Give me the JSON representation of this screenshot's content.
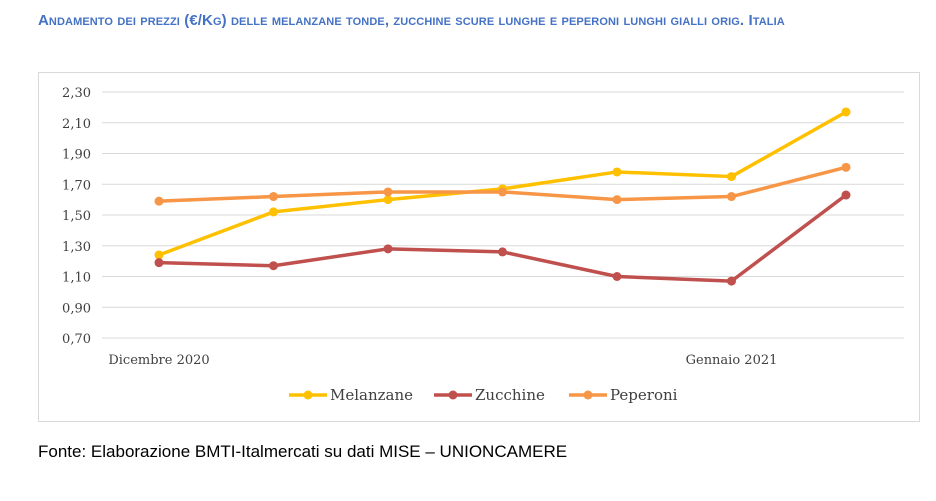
{
  "title": "Andamento dei prezzi (€/Kg) delle melanzane tonde, zucchine scure lunghe e peperoni lunghi gialli orig. Italia",
  "source": "Fonte: Elaborazione BMTI-Italmercati su dati MISE – UNIONCAMERE",
  "chart_data": {
    "type": "line",
    "title": "Andamento dei prezzi (€/Kg) delle melanzane tonde, zucchine scure lunghe e peperoni lunghi gialli orig. Italia",
    "xlabel": "",
    "ylabel": "",
    "x_tick_labels": [
      "Dicembre 2020",
      "",
      "",
      "",
      "",
      "Gennaio 2021",
      ""
    ],
    "ylim": [
      0.7,
      2.3
    ],
    "y_ticks": [
      "0,70",
      "0,90",
      "1,10",
      "1,30",
      "1,50",
      "1,70",
      "1,90",
      "2,10",
      "2,30"
    ],
    "grid": true,
    "legend_position": "bottom",
    "series": [
      {
        "name": "Melanzane",
        "color": "#FFC000",
        "values": [
          1.24,
          1.52,
          1.6,
          1.67,
          1.78,
          1.75,
          2.17
        ]
      },
      {
        "name": "Zucchine",
        "color": "#C0504D",
        "values": [
          1.19,
          1.17,
          1.28,
          1.26,
          1.1,
          1.07,
          1.63
        ]
      },
      {
        "name": "Peperoni",
        "color": "#F79646",
        "values": [
          1.59,
          1.62,
          1.65,
          1.65,
          1.6,
          1.62,
          1.81
        ]
      }
    ]
  }
}
